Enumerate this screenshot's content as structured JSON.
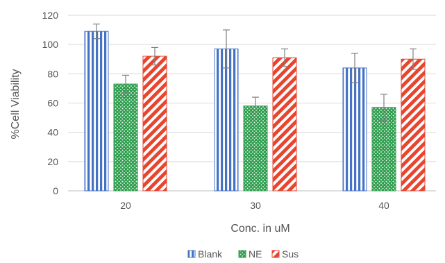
{
  "chart_data": {
    "type": "bar",
    "categories": [
      "20",
      "30",
      "40"
    ],
    "series": [
      {
        "name": "Blank",
        "values": [
          109,
          97,
          84
        ],
        "errors": [
          5,
          13,
          10
        ],
        "color": "#4472C4",
        "pattern": "vertical-stripes"
      },
      {
        "name": "NE",
        "values": [
          73,
          58,
          57
        ],
        "errors": [
          6,
          6,
          9
        ],
        "color": "#2E9E4E",
        "pattern": "dots"
      },
      {
        "name": "Sus",
        "values": [
          92,
          91,
          90
        ],
        "errors": [
          6,
          6,
          7
        ],
        "color": "#E8452F",
        "pattern": "diagonal-stripes"
      }
    ],
    "xlabel": "Conc. in uM",
    "ylabel": "%Cell Viability",
    "ylim": [
      0,
      120
    ],
    "yticks": [
      "0",
      "20",
      "40",
      "60",
      "80",
      "100",
      "120"
    ],
    "grid": true,
    "legend_position": "bottom-center"
  }
}
